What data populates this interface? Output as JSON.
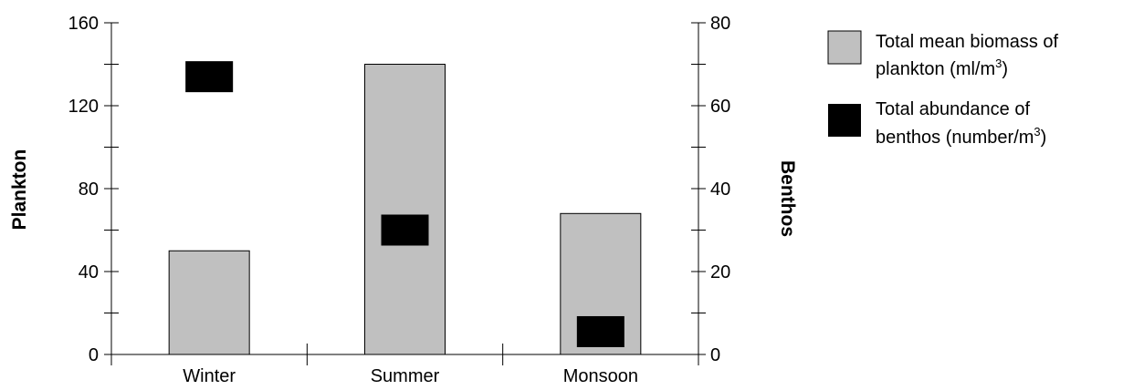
{
  "chart_data": {
    "type": "bar",
    "categories": [
      "Winter",
      "Summer",
      "Monsoon"
    ],
    "ylabel_left": "Plankton",
    "ylabel_right": "Benthos",
    "ylim_left": [
      0,
      160
    ],
    "ylim_right": [
      0,
      80
    ],
    "yticks_left": [
      "0",
      "40",
      "80",
      "120",
      "160"
    ],
    "yticks_right": [
      "0",
      "20",
      "40",
      "60",
      "80"
    ],
    "grid": false,
    "legend_position": "right",
    "series": [
      {
        "name_line1": "Total mean biomass of",
        "name_line2": "plankton (ml/m",
        "name_sup": "3",
        "name_tail": ")",
        "axis": "left",
        "marker": "bar",
        "color": "#c0c0c0",
        "values": [
          50,
          140,
          68
        ]
      },
      {
        "name_line1": "Total abundance of",
        "name_line2": "benthos (number/m",
        "name_sup": "3",
        "name_tail": ")",
        "axis": "right",
        "marker": "square",
        "color": "#000000",
        "values": [
          67,
          30,
          5.5
        ]
      }
    ]
  }
}
